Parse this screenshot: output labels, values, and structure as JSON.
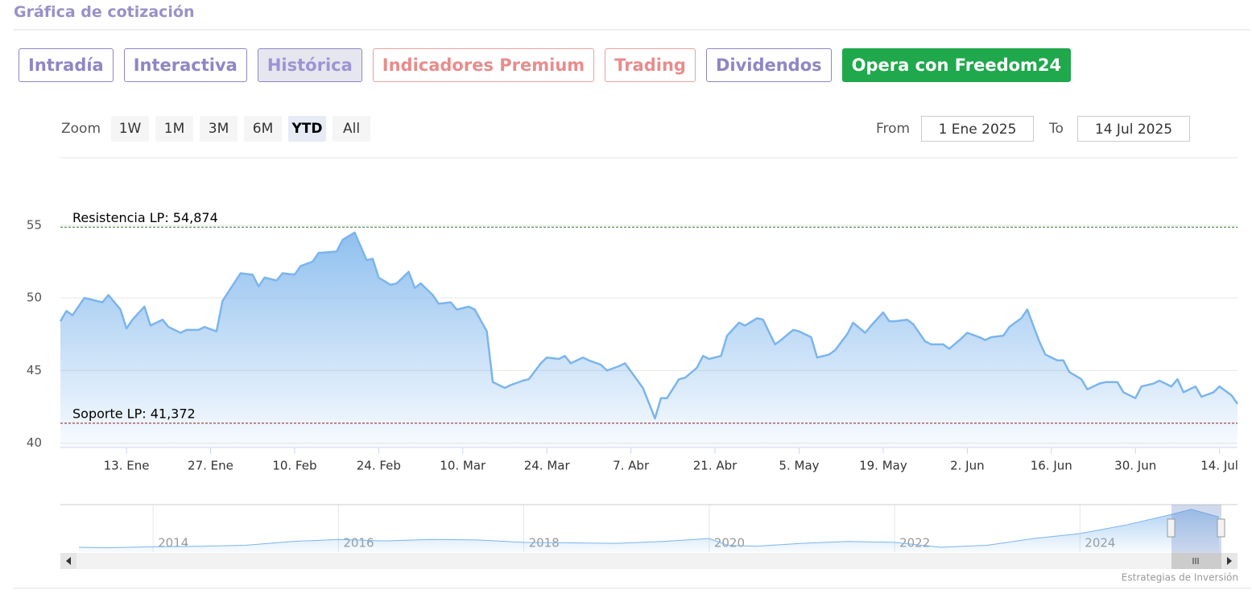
{
  "header": {
    "title": "Gráfica de cotización"
  },
  "tabs": [
    "Intradía",
    "Interactiva",
    "Histórica",
    "Indicadores Premium",
    "Trading",
    "Dividendos",
    "Opera con Freedom24"
  ],
  "toolbar": {
    "zoom_label": "Zoom",
    "zoom_buttons": [
      "1W",
      "1M",
      "3M",
      "6M",
      "YTD",
      "All"
    ],
    "from_label": "From",
    "from_value": "1 Ene 2025",
    "to_label": "To",
    "to_value": "14 Jul 2025"
  },
  "credit": "Estrategias de Inversión",
  "chart_data": [
    {
      "type": "area",
      "color": "#7cb5ec",
      "x": [
        2,
        3,
        4,
        6,
        7,
        9,
        10,
        12,
        13,
        14,
        16,
        17,
        19,
        20,
        22,
        23,
        25,
        26,
        28,
        29,
        32,
        34,
        35,
        36,
        38,
        39,
        41,
        42,
        44,
        45,
        48,
        49,
        51,
        53,
        54,
        55,
        57,
        58,
        60,
        61,
        62,
        64,
        65,
        67,
        68,
        70,
        71,
        73,
        74,
        76,
        77,
        79,
        80,
        82,
        83,
        85,
        86,
        87,
        89,
        90,
        92,
        93,
        95,
        96,
        99,
        101,
        102,
        103,
        105,
        106,
        108,
        109,
        110,
        112,
        113,
        115,
        116,
        118,
        119,
        121,
        122,
        124,
        125,
        127,
        128,
        130,
        131,
        133,
        134,
        136,
        137,
        139,
        140,
        141,
        143,
        144,
        146,
        147,
        149,
        150,
        152,
        153,
        155,
        156,
        157,
        159,
        160,
        162,
        163,
        165,
        166,
        168,
        169,
        170,
        172,
        173,
        175,
        176,
        178,
        179,
        181,
        182,
        184,
        185,
        187,
        188,
        189,
        191,
        192,
        194,
        195,
        197,
        198
      ],
      "values": [
        48.4,
        49.1,
        48.8,
        50.0,
        49.9,
        49.7,
        50.2,
        49.2,
        47.9,
        48.5,
        49.4,
        48.1,
        48.5,
        48.0,
        47.6,
        47.8,
        47.8,
        48.0,
        47.7,
        49.8,
        51.7,
        51.6,
        50.8,
        51.4,
        51.2,
        51.7,
        51.6,
        52.2,
        52.5,
        53.1,
        53.2,
        54.0,
        54.5,
        52.6,
        52.7,
        51.4,
        50.9,
        51.0,
        51.8,
        50.7,
        51.0,
        50.2,
        49.6,
        49.7,
        49.2,
        49.4,
        49.2,
        47.7,
        44.2,
        43.8,
        44.0,
        44.3,
        44.4,
        45.5,
        45.9,
        45.8,
        46.0,
        45.5,
        45.9,
        45.7,
        45.4,
        45.0,
        45.3,
        45.5,
        43.8,
        41.7,
        43.1,
        43.1,
        44.4,
        44.5,
        45.2,
        46.0,
        45.8,
        46.0,
        47.4,
        48.3,
        48.1,
        48.6,
        48.5,
        46.8,
        47.1,
        47.8,
        47.7,
        47.3,
        45.9,
        46.1,
        46.4,
        47.5,
        48.3,
        47.6,
        48.1,
        49.0,
        48.4,
        48.4,
        48.5,
        48.2,
        47.0,
        46.8,
        46.8,
        46.5,
        47.2,
        47.6,
        47.3,
        47.1,
        47.3,
        47.4,
        48.0,
        48.6,
        49.2,
        47.0,
        46.1,
        45.7,
        45.7,
        44.9,
        44.4,
        43.7,
        44.1,
        44.2,
        44.2,
        43.5,
        43.1,
        43.9,
        44.1,
        44.3,
        43.9,
        44.4,
        43.5,
        43.9,
        43.2,
        43.5,
        43.9,
        43.3,
        42.7
      ],
      "xlim": [
        2,
        198
      ],
      "xticks": [
        {
          "value": 13,
          "label": "13. Ene"
        },
        {
          "value": 27,
          "label": "27. Ene"
        },
        {
          "value": 41,
          "label": "10. Feb"
        },
        {
          "value": 55,
          "label": "24. Feb"
        },
        {
          "value": 69,
          "label": "10. Mar"
        },
        {
          "value": 83,
          "label": "24. Mar"
        },
        {
          "value": 97,
          "label": "7. Abr"
        },
        {
          "value": 111,
          "label": "21. Abr"
        },
        {
          "value": 125,
          "label": "5. May"
        },
        {
          "value": 139,
          "label": "19. May"
        },
        {
          "value": 153,
          "label": "2. Jun"
        },
        {
          "value": 167,
          "label": "16. Jun"
        },
        {
          "value": 181,
          "label": "30. Jun"
        },
        {
          "value": 195,
          "label": "14. Jul"
        }
      ],
      "ylim": [
        39.7,
        59.6
      ],
      "yticks": [
        40,
        45,
        50,
        55
      ],
      "grid": true,
      "plot_lines": [
        {
          "value": 54.874,
          "label": "Resistencia LP: 54,874",
          "color": "#2b7a2b"
        },
        {
          "value": 41.372,
          "label": "Soporte LP: 41,372",
          "color": "#8b1a1a"
        }
      ]
    },
    {
      "type": "area",
      "color": "#7cb5ec",
      "x": [
        2013.2,
        2013.5,
        2014,
        2014.5,
        2015,
        2015.5,
        2016,
        2016.5,
        2017,
        2017.5,
        2018,
        2018.5,
        2019,
        2019.5,
        2020,
        2020.2,
        2020.5,
        2021,
        2021.5,
        2022,
        2022.5,
        2023,
        2023.5,
        2024,
        2024.5,
        2025,
        2025.2,
        2025.5
      ],
      "values": [
        15,
        14.5,
        15.5,
        16,
        17,
        21,
        23,
        21.5,
        23,
        22.5,
        20,
        19.5,
        19,
        21,
        24,
        17,
        16,
        19,
        21,
        20,
        15,
        17,
        24,
        29,
        38,
        49,
        54,
        46
      ],
      "xlim": [
        2013,
        2025.7
      ],
      "xticks": [
        2014,
        2016,
        2018,
        2020,
        2022,
        2024
      ],
      "ylim": [
        10,
        58
      ],
      "grid": true
    }
  ]
}
